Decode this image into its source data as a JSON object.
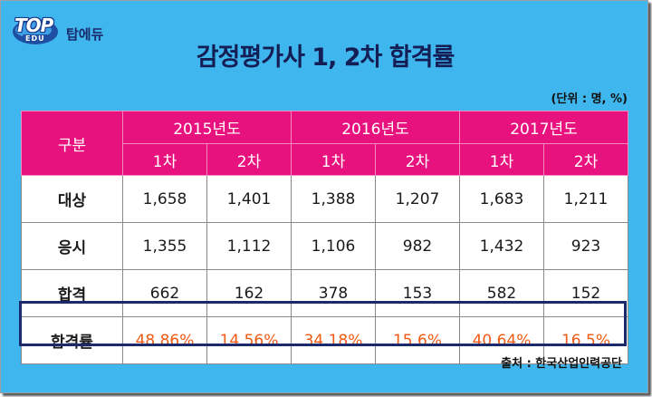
{
  "brand": {
    "logo_text": "TOP",
    "logo_sub": "EDU",
    "name": "탑에듀"
  },
  "title": "감정평가사 1, 2차 합격률",
  "unit": "(단위 : 명, %)",
  "source": "출처 : 한국산업인력공단",
  "table": {
    "corner": "구분",
    "years": [
      "2015년도",
      "2016년도",
      "2017년도"
    ],
    "rounds": [
      "1차",
      "2차",
      "1차",
      "2차",
      "1차",
      "2차"
    ],
    "rows": [
      {
        "label": "대상",
        "values": [
          "1,658",
          "1,401",
          "1,388",
          "1,207",
          "1,683",
          "1,211"
        ]
      },
      {
        "label": "응시",
        "values": [
          "1,355",
          "1,112",
          "1,106",
          "982",
          "1,432",
          "923"
        ]
      },
      {
        "label": "합격",
        "values": [
          "662",
          "162",
          "378",
          "153",
          "582",
          "152"
        ]
      },
      {
        "label": "합격률",
        "values": [
          "48.86%",
          "14.56%",
          "34.18%",
          "15.6%",
          "40.64%",
          "16.5%"
        ]
      }
    ]
  },
  "colors": {
    "background": "#3fb6ee",
    "header": "#e8127f",
    "rate_text": "#f05a14",
    "title": "#141e55"
  }
}
